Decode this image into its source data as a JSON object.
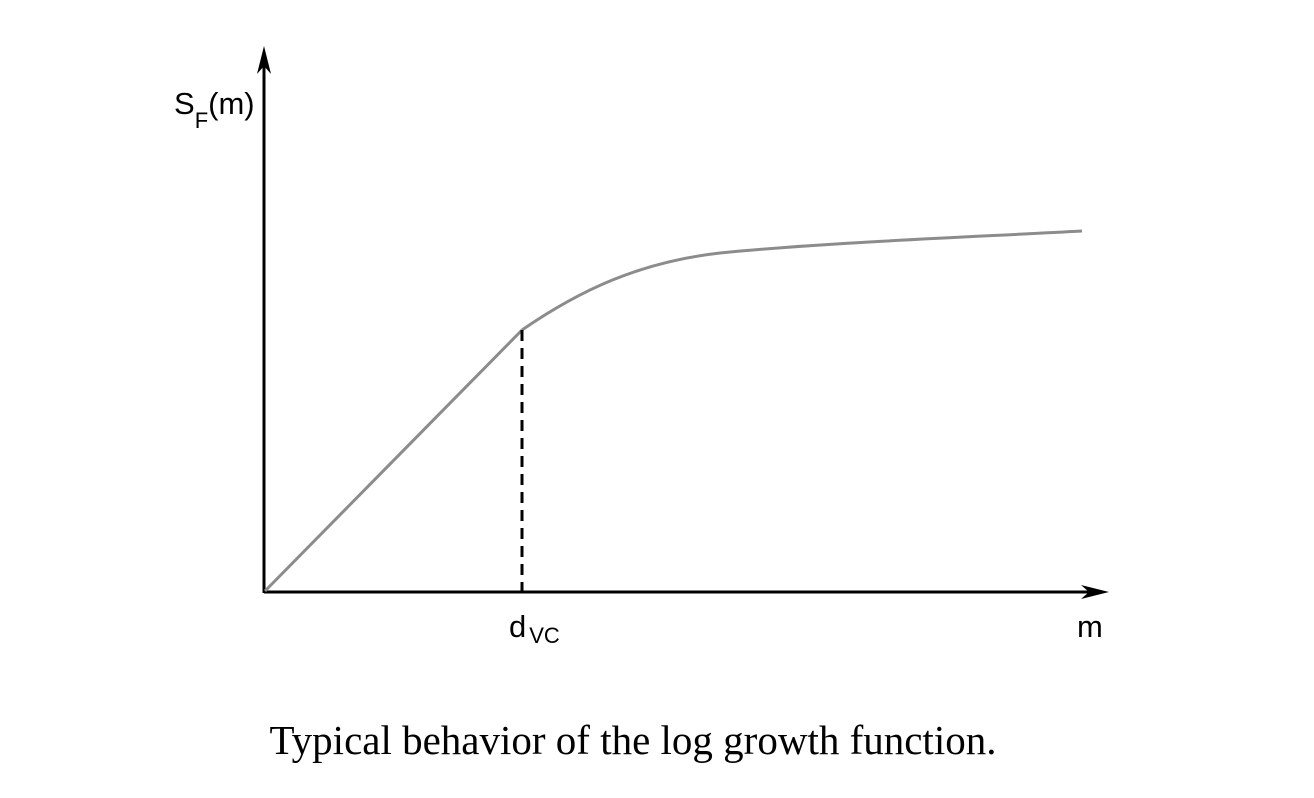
{
  "y_axis_label": {
    "main": "S",
    "subscript": "F",
    "suffix": "(m)"
  },
  "x_axis_label": "m",
  "marker_label": {
    "main": "d",
    "subscript": "VC"
  },
  "caption": "Typical behavior of the log growth function.",
  "colors": {
    "axes": "#000000",
    "curve": "#8c8c8c",
    "marker_line": "#000000"
  }
}
